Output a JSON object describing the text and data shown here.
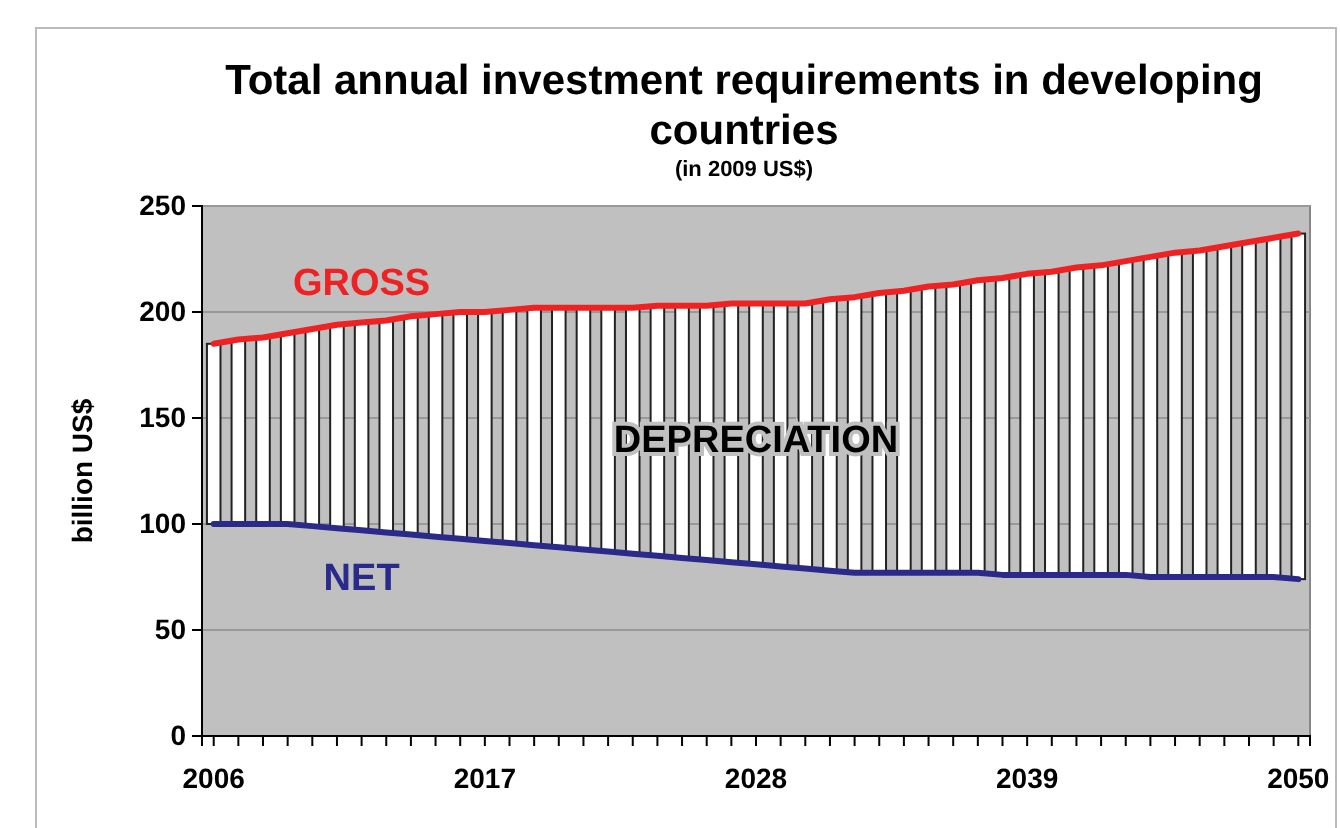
{
  "chart_data": {
    "type": "bar",
    "title": "Total annual investment requirements in developing countries",
    "subtitle": "(in 2009 US$)",
    "ylabel": "billion US$",
    "categories": [
      "2006",
      null,
      null,
      null,
      null,
      null,
      null,
      null,
      null,
      null,
      null,
      "2017",
      null,
      null,
      null,
      null,
      null,
      null,
      null,
      null,
      null,
      null,
      "2028",
      null,
      null,
      null,
      null,
      null,
      null,
      null,
      null,
      null,
      null,
      "2039",
      null,
      null,
      null,
      null,
      null,
      null,
      null,
      null,
      null,
      null,
      "2050"
    ],
    "ylim": [
      0,
      250
    ],
    "yticks": [
      0,
      50,
      100,
      150,
      200,
      250
    ],
    "grid": "y",
    "series": [
      {
        "name": "DEPRECIATION",
        "color": "#ffffff",
        "values": [
          85,
          87,
          88,
          90,
          93,
          96,
          98,
          100,
          103,
          105,
          107,
          108,
          110,
          112,
          113,
          114,
          115,
          116,
          118,
          119,
          120,
          122,
          123,
          124,
          125,
          128,
          130,
          132,
          133,
          135,
          136,
          138,
          140,
          142,
          143,
          145,
          146,
          148,
          151,
          153,
          154,
          156,
          158,
          160,
          163
        ],
        "base": [
          100,
          100,
          100,
          100,
          99,
          98,
          97,
          96,
          95,
          94,
          93,
          92,
          91,
          90,
          89,
          88,
          87,
          86,
          85,
          84,
          83,
          82,
          81,
          80,
          79,
          78,
          77,
          77,
          77,
          77,
          77,
          77,
          76,
          76,
          76,
          76,
          76,
          76,
          75,
          75,
          75,
          75,
          75,
          75,
          74
        ]
      },
      {
        "name": "GROSS",
        "type": "line",
        "color": "#ee2222",
        "values": [
          185,
          187,
          188,
          190,
          192,
          194,
          195,
          196,
          198,
          199,
          200,
          200,
          201,
          202,
          202,
          202,
          202,
          202,
          203,
          203,
          203,
          204,
          204,
          204,
          204,
          206,
          207,
          209,
          210,
          212,
          213,
          215,
          216,
          218,
          219,
          221,
          222,
          224,
          226,
          228,
          229,
          231,
          233,
          235,
          237
        ]
      },
      {
        "name": "NET",
        "type": "line",
        "color": "#2a2a8a",
        "values": [
          100,
          100,
          100,
          100,
          99,
          98,
          97,
          96,
          95,
          94,
          93,
          92,
          91,
          90,
          89,
          88,
          87,
          86,
          85,
          84,
          83,
          82,
          81,
          80,
          79,
          78,
          77,
          77,
          77,
          77,
          77,
          77,
          76,
          76,
          76,
          76,
          76,
          76,
          75,
          75,
          75,
          75,
          75,
          75,
          74
        ]
      }
    ]
  }
}
